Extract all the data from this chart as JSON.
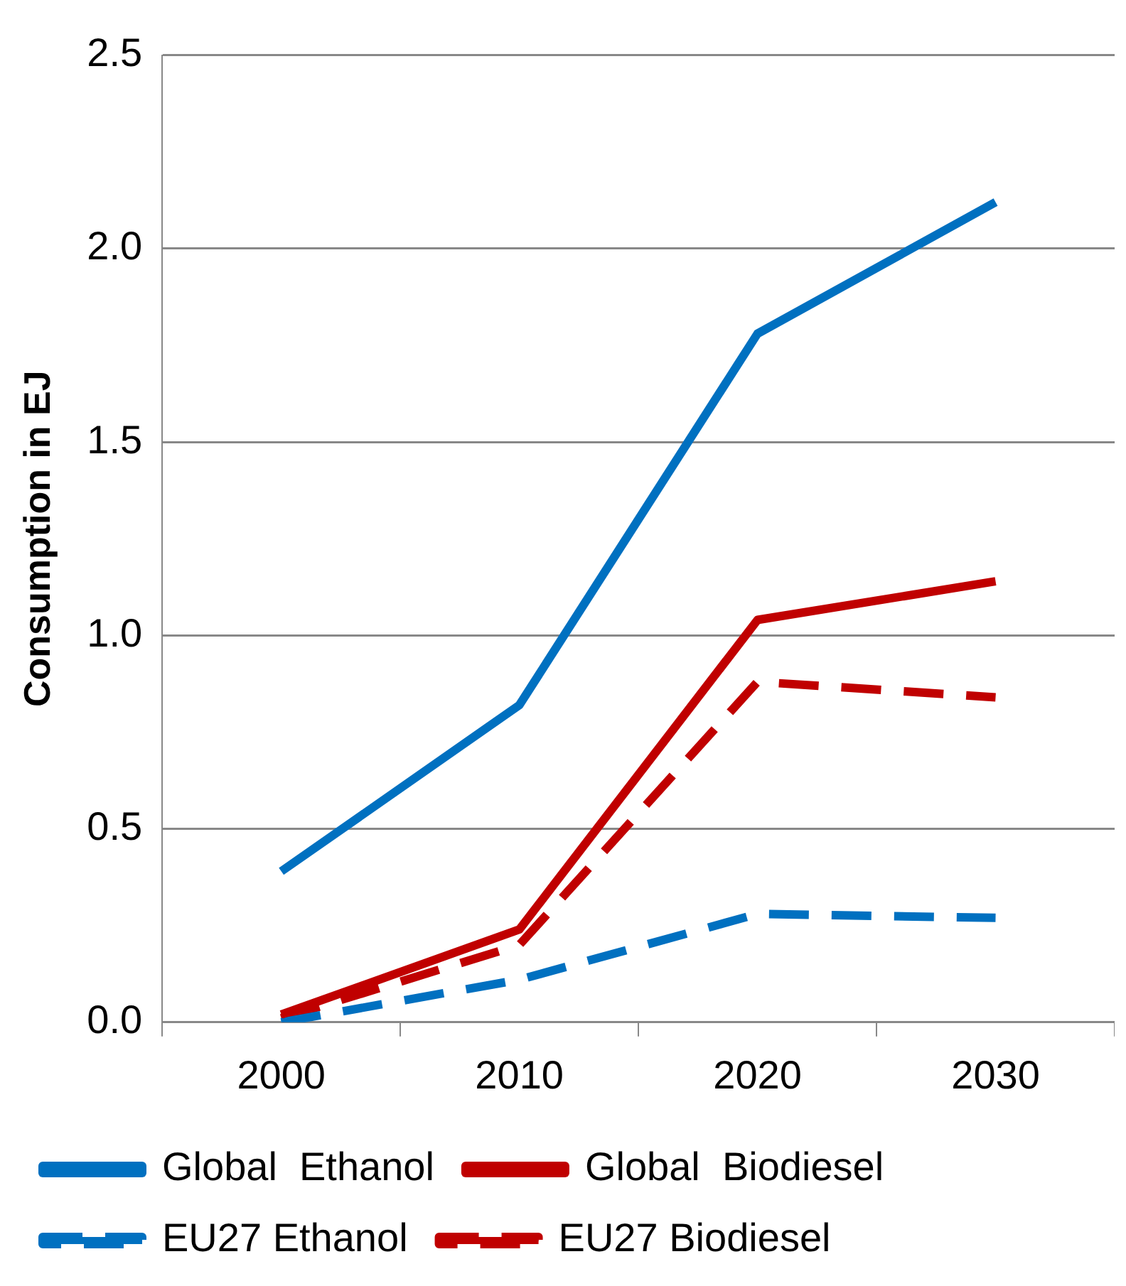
{
  "chart_data": {
    "type": "line",
    "ylabel": "Consumption in EJ",
    "categories": [
      "2000",
      "2010",
      "2020",
      "2030"
    ],
    "series": [
      {
        "name": "Global  Ethanol",
        "color": "#0070c0",
        "values": [
          0.39,
          0.82,
          1.78,
          2.12
        ],
        "line_style": "solid"
      },
      {
        "name": "Global  Biodiesel",
        "color": "#c00000",
        "values": [
          0.02,
          0.24,
          1.04,
          1.14
        ],
        "line_style": "solid"
      },
      {
        "name": "EU27 Ethanol",
        "color": "#0070c0",
        "values": [
          0.0,
          0.11,
          0.28,
          0.27
        ],
        "line_style": "dashed"
      },
      {
        "name": "EU27 Biodiesel",
        "color": "#c00000",
        "values": [
          0.01,
          0.2,
          0.88,
          0.84
        ],
        "line_style": "dashed"
      }
    ],
    "ylim": [
      0,
      2.5
    ],
    "yticks": [
      {
        "value": 0,
        "label": "0.0"
      },
      {
        "value": 0.5,
        "label": "0.5"
      },
      {
        "value": 1,
        "label": "1.0"
      },
      {
        "value": 1.5,
        "label": "1.5"
      },
      {
        "value": 2,
        "label": "2.0"
      },
      {
        "value": 2.5,
        "label": "2.5"
      }
    ],
    "grid": "y",
    "legend": "bottom",
    "marker": "none"
  }
}
